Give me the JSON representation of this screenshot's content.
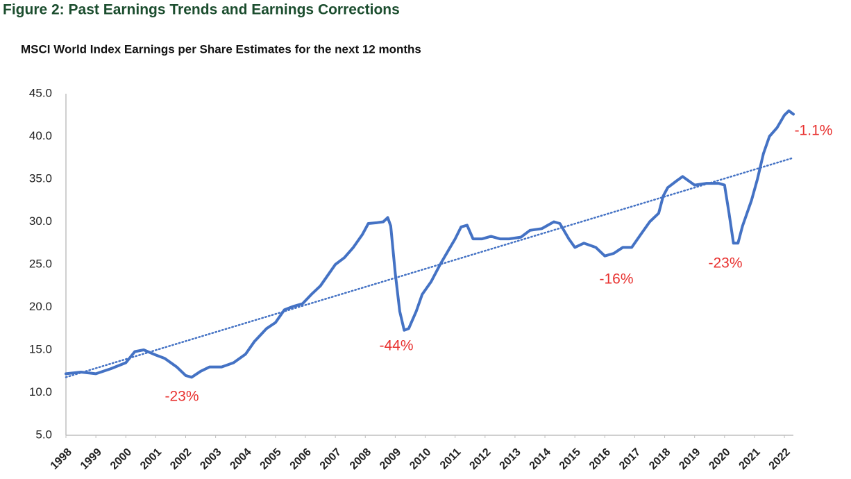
{
  "chart_data": {
    "type": "line",
    "title": "Figure 2: Past Earnings Trends and Earnings Corrections",
    "subtitle": "MSCI World Index Earnings per Share Estimates for the next 12 months",
    "x": [
      1998.0,
      1998.5,
      1999.0,
      1999.5,
      2000.0,
      2000.3,
      2000.6,
      2001.0,
      2001.3,
      2001.7,
      2002.0,
      2002.2,
      2002.5,
      2002.8,
      2003.2,
      2003.6,
      2004.0,
      2004.3,
      2004.7,
      2005.0,
      2005.3,
      2005.6,
      2005.9,
      2006.2,
      2006.5,
      2006.8,
      2007.0,
      2007.3,
      2007.6,
      2007.9,
      2008.1,
      2008.4,
      2008.6,
      2008.75,
      2008.85,
      2009.0,
      2009.15,
      2009.3,
      2009.45,
      2009.7,
      2009.9,
      2010.2,
      2010.5,
      2010.8,
      2011.0,
      2011.2,
      2011.4,
      2011.6,
      2011.9,
      2012.2,
      2012.5,
      2012.8,
      2013.2,
      2013.5,
      2013.9,
      2014.3,
      2014.5,
      2014.8,
      2015.0,
      2015.3,
      2015.7,
      2016.0,
      2016.3,
      2016.6,
      2016.9,
      2017.2,
      2017.5,
      2017.8,
      2017.95,
      2018.1,
      2018.4,
      2018.6,
      2018.8,
      2019.0,
      2019.4,
      2019.8,
      2020.0,
      2020.15,
      2020.3,
      2020.45,
      2020.6,
      2020.9,
      2021.1,
      2021.3,
      2021.5,
      2021.75,
      2022.0,
      2022.15,
      2022.3
    ],
    "values": [
      12.2,
      12.4,
      12.2,
      12.8,
      13.5,
      14.8,
      15.0,
      14.4,
      14.0,
      13.0,
      12.0,
      11.8,
      12.5,
      13.0,
      13.0,
      13.5,
      14.5,
      16.0,
      17.5,
      18.2,
      19.7,
      20.1,
      20.4,
      21.5,
      22.5,
      24.0,
      25.0,
      25.8,
      27.0,
      28.5,
      29.8,
      29.9,
      30.0,
      30.5,
      29.5,
      24.0,
      19.5,
      17.3,
      17.5,
      19.5,
      21.5,
      23.0,
      25.0,
      26.8,
      28.0,
      29.4,
      29.6,
      28.0,
      28.0,
      28.3,
      28.0,
      28.0,
      28.2,
      29.0,
      29.2,
      30.0,
      29.8,
      28.0,
      27.0,
      27.5,
      27.0,
      26.0,
      26.3,
      27.0,
      27.0,
      28.5,
      30.0,
      31.0,
      33.0,
      34.0,
      34.8,
      35.3,
      34.8,
      34.3,
      34.5,
      34.5,
      34.3,
      31.0,
      27.5,
      27.5,
      29.5,
      32.5,
      35.0,
      38.0,
      40.0,
      41.0,
      42.5,
      43.0,
      42.6
    ],
    "color": "#4472c4",
    "trend": {
      "x": [
        1998.0,
        2022.3
      ],
      "values": [
        11.8,
        37.5
      ],
      "color": "#4472c4",
      "style": "dotted"
    },
    "annotations": [
      "-23%",
      "-44%",
      "-16%",
      "-23%",
      "-1.1%"
    ],
    "annotation_color": "#e8312f",
    "xlim": [
      1998,
      2022.3
    ],
    "xticks": [
      1998,
      1999,
      2000,
      2001,
      2002,
      2003,
      2004,
      2005,
      2006,
      2007,
      2008,
      2009,
      2010,
      2011,
      2012,
      2013,
      2014,
      2015,
      2016,
      2017,
      2018,
      2019,
      2020,
      2021,
      2022
    ],
    "ylim": [
      5,
      45
    ],
    "yticks": [
      {
        "value": 5,
        "label": "5.0"
      },
      {
        "value": 10,
        "label": "10.0"
      },
      {
        "value": 15,
        "label": "15.0"
      },
      {
        "value": 20,
        "label": "20.0"
      },
      {
        "value": 25,
        "label": "25.0"
      },
      {
        "value": 30,
        "label": "30.0"
      },
      {
        "value": 35,
        "label": "35.0"
      },
      {
        "value": 40,
        "label": "40.0"
      },
      {
        "value": 45,
        "label": "45.0"
      }
    ],
    "grid": false
  }
}
